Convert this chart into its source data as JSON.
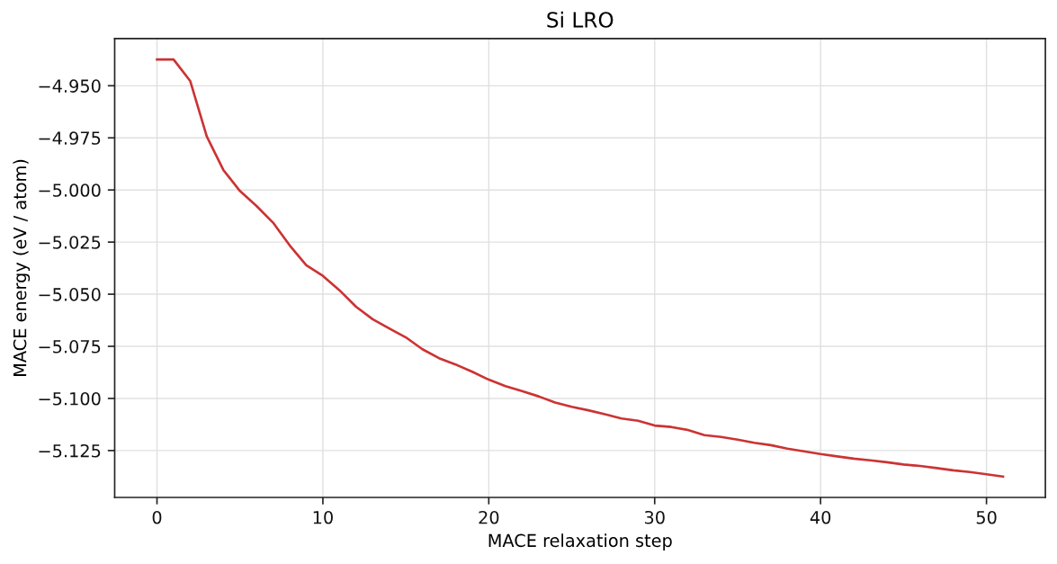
{
  "chart_data": {
    "type": "line",
    "title": "Si LRO",
    "xlabel": "MACE relaxation step",
    "ylabel": "MACE energy (eV / atom)",
    "x": [
      0,
      1,
      2,
      3,
      4,
      5,
      6,
      7,
      8,
      9,
      10,
      11,
      12,
      13,
      14,
      15,
      16,
      17,
      18,
      19,
      20,
      21,
      22,
      23,
      24,
      25,
      26,
      27,
      28,
      29,
      30,
      31,
      32,
      33,
      34,
      35,
      36,
      37,
      38,
      39,
      40,
      41,
      42,
      43,
      44,
      45,
      46,
      47,
      48,
      49,
      50,
      51
    ],
    "series": [
      {
        "color": "#cc3333",
        "values": [
          -4.9374,
          -4.9374,
          -4.9477,
          -4.9743,
          -4.9904,
          -5.0005,
          -5.0077,
          -5.0157,
          -5.0266,
          -5.0361,
          -5.0412,
          -5.0481,
          -5.056,
          -5.062,
          -5.0664,
          -5.0707,
          -5.0764,
          -5.0807,
          -5.0837,
          -5.0872,
          -5.091,
          -5.0941,
          -5.0965,
          -5.099,
          -5.102,
          -5.104,
          -5.1057,
          -5.1076,
          -5.1096,
          -5.1107,
          -5.113,
          -5.1137,
          -5.1151,
          -5.1176,
          -5.1185,
          -5.1198,
          -5.1213,
          -5.1224,
          -5.1241,
          -5.1254,
          -5.1267,
          -5.1278,
          -5.1289,
          -5.1297,
          -5.1306,
          -5.1317,
          -5.1324,
          -5.1334,
          -5.1345,
          -5.1353,
          -5.1364,
          -5.1375
        ]
      }
    ],
    "xlim": [
      -2.55,
      53.55
    ],
    "xticks": [
      0,
      10,
      20,
      30,
      40,
      50
    ],
    "ylim": [
      -5.1475,
      -4.9274
    ],
    "yticks": [
      {
        "value": -4.95,
        "label": "−4.950"
      },
      {
        "value": -4.975,
        "label": "−4.975"
      },
      {
        "value": -5.0,
        "label": "−5.000"
      },
      {
        "value": -5.025,
        "label": "−5.025"
      },
      {
        "value": -5.05,
        "label": "−5.050"
      },
      {
        "value": -5.075,
        "label": "−5.075"
      },
      {
        "value": -5.1,
        "label": "−5.100"
      },
      {
        "value": -5.125,
        "label": "−5.125"
      }
    ],
    "grid": true
  }
}
